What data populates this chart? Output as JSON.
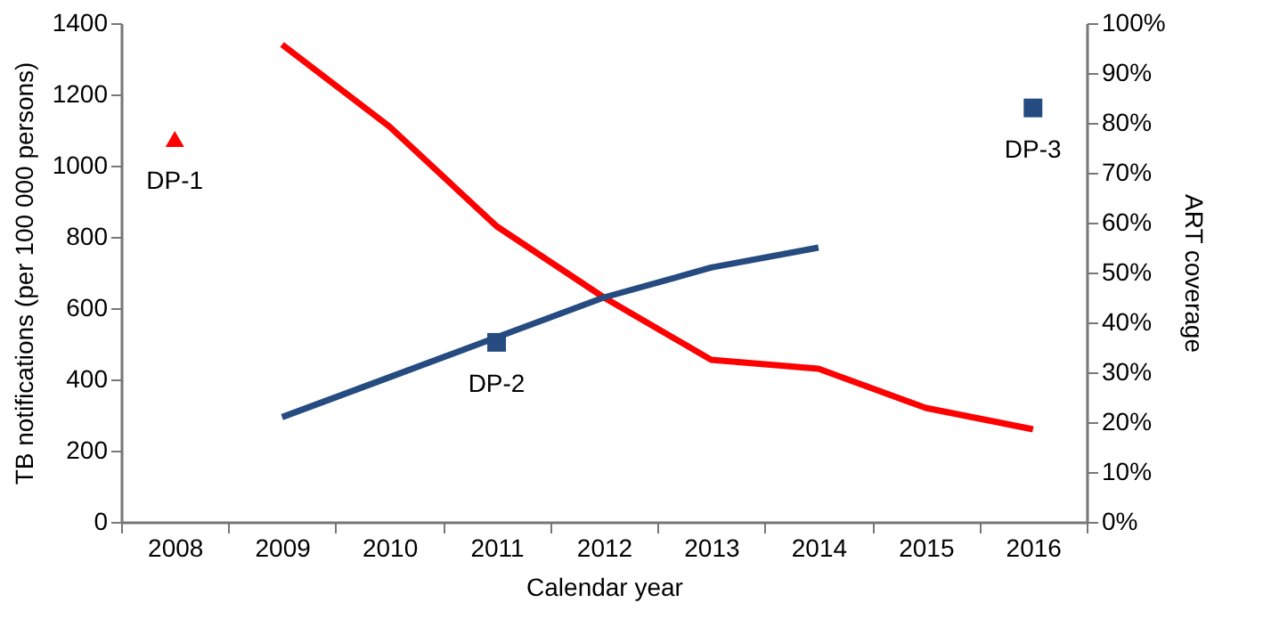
{
  "chart_data": {
    "type": "line",
    "xlabel": "Calendar year",
    "ylabel": "TB notifications (per 100 000 persons)",
    "y2label": "ART coverage",
    "categories": [
      "2008",
      "2009",
      "2010",
      "2011",
      "2012",
      "2013",
      "2014",
      "2015",
      "2016"
    ],
    "ylim": [
      0,
      1400
    ],
    "yticks": [
      0,
      200,
      400,
      600,
      800,
      1000,
      1200,
      1400
    ],
    "y2lim": [
      0,
      100
    ],
    "y2ticks": [
      {
        "value": 0,
        "label": "0%"
      },
      {
        "value": 10,
        "label": "10%"
      },
      {
        "value": 20,
        "label": "20%"
      },
      {
        "value": 30,
        "label": "30%"
      },
      {
        "value": 40,
        "label": "40%"
      },
      {
        "value": 50,
        "label": "50%"
      },
      {
        "value": 60,
        "label": "60%"
      },
      {
        "value": 70,
        "label": "70%"
      },
      {
        "value": 80,
        "label": "80%"
      },
      {
        "value": 90,
        "label": "90%"
      },
      {
        "value": 100,
        "label": "100%"
      }
    ],
    "series": [
      {
        "color": "#ff0000",
        "values": [
          null,
          1340,
          1110,
          830,
          630,
          455,
          430,
          320,
          260
        ]
      },
      {
        "axis": "y2",
        "color": "#264b80",
        "values": [
          null,
          21,
          29,
          37,
          45,
          51,
          55,
          null,
          null
        ]
      },
      {
        "type": "scatter",
        "name": "DP-1",
        "marker": "triangle",
        "color": "#ff0000",
        "values": [
          1075,
          null,
          null,
          null,
          null,
          null,
          null,
          null,
          null
        ]
      },
      {
        "type": "scatter",
        "name": "DP-2",
        "marker": "square",
        "axis": "y2",
        "color": "#264b80",
        "values": [
          null,
          null,
          null,
          36,
          null,
          null,
          null,
          null,
          null
        ]
      },
      {
        "type": "scatter",
        "name": "DP-3",
        "marker": "square",
        "axis": "y2",
        "color": "#264b80",
        "values": [
          null,
          null,
          null,
          null,
          null,
          null,
          null,
          null,
          83
        ]
      }
    ],
    "grid": false
  }
}
